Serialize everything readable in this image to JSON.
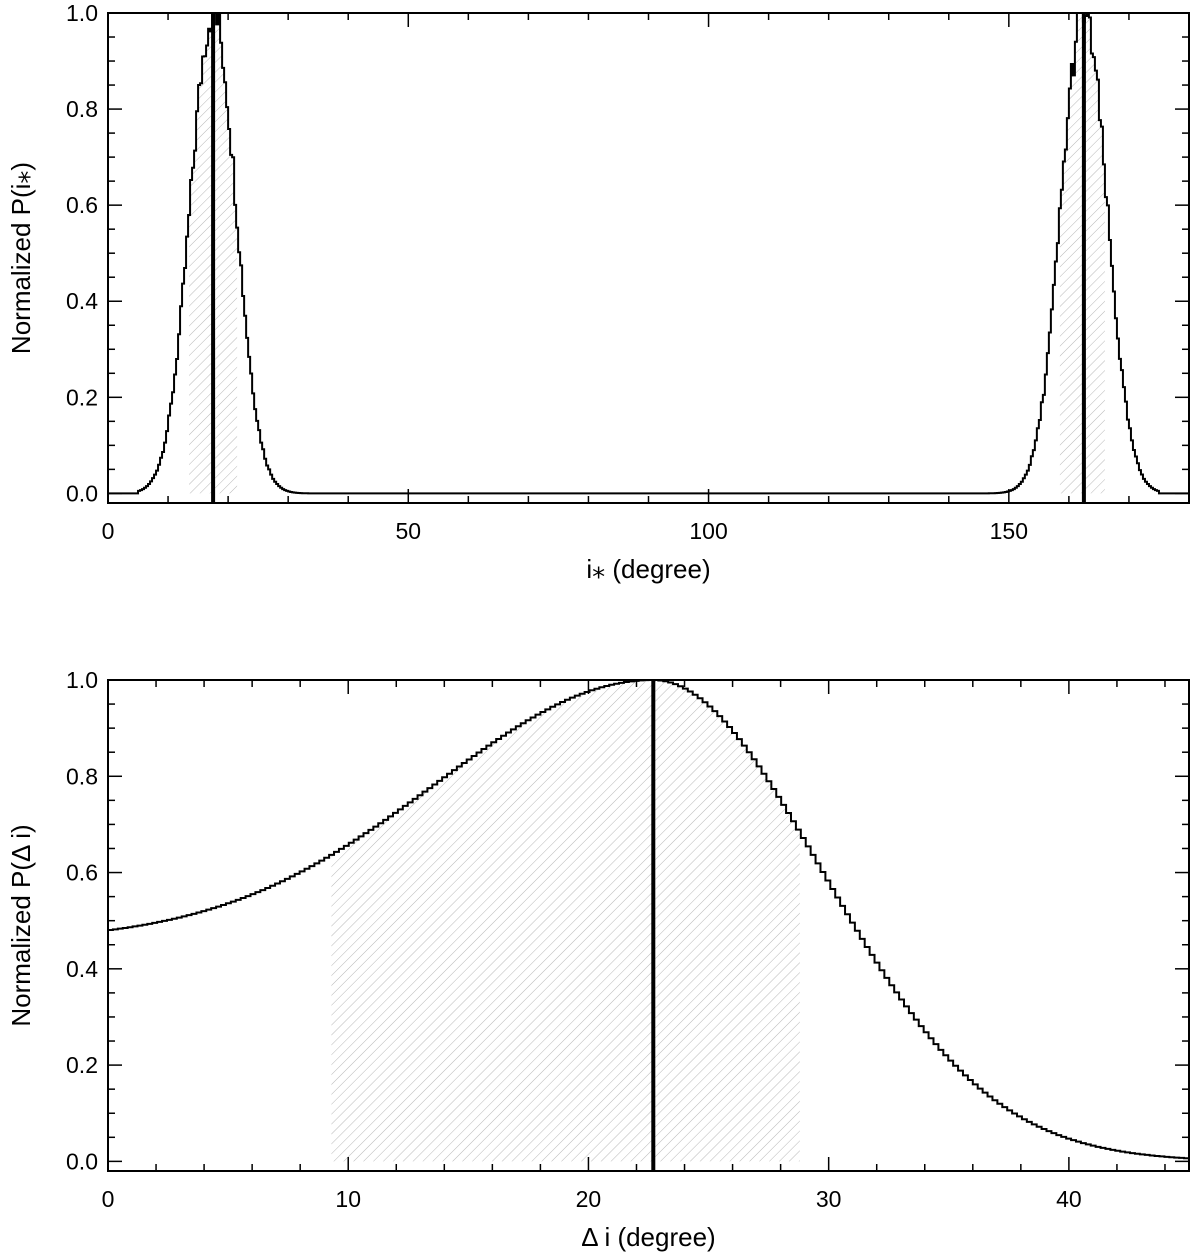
{
  "chart_data": [
    {
      "type": "step",
      "xlabel": "i⁎ (degree)",
      "ylabel": "Normalized P(i⁎)",
      "xlim": [
        0,
        180
      ],
      "ylim": [
        -0.02,
        1.0
      ],
      "xticks": [
        0,
        50,
        100,
        150
      ],
      "yticks": [
        0.0,
        0.2,
        0.4,
        0.6,
        0.8,
        1.0
      ],
      "grid": false,
      "peaks": [
        {
          "center": 17.5,
          "sigma_left": 3.8,
          "sigma_right": 3.8,
          "support": [
            5,
            34
          ]
        },
        {
          "center": 162.5,
          "sigma_left": 3.8,
          "sigma_right": 3.8,
          "support": [
            146,
            175
          ]
        }
      ],
      "shaded_intervals": [
        [
          13.5,
          21.5
        ],
        [
          158.5,
          166.0
        ]
      ],
      "vertical_lines": [
        17.5,
        162.5
      ]
    },
    {
      "type": "step",
      "xlabel": "Δ i (degree)",
      "ylabel": "Normalized P(Δ i)",
      "xlim": [
        0,
        45
      ],
      "ylim": [
        -0.02,
        1.0
      ],
      "xticks": [
        0,
        10,
        20,
        30,
        40
      ],
      "yticks": [
        0.0,
        0.2,
        0.4,
        0.6,
        0.8,
        1.0
      ],
      "grid": false,
      "peaks": [
        {
          "center": 22.7,
          "sigma_left": 9.0,
          "sigma_right": 7.0,
          "support": [
            0,
            45
          ]
        }
      ],
      "value_at_zero": 0.48,
      "shaded_intervals": [
        [
          9.3,
          28.8
        ]
      ],
      "vertical_lines": [
        22.7
      ]
    }
  ]
}
